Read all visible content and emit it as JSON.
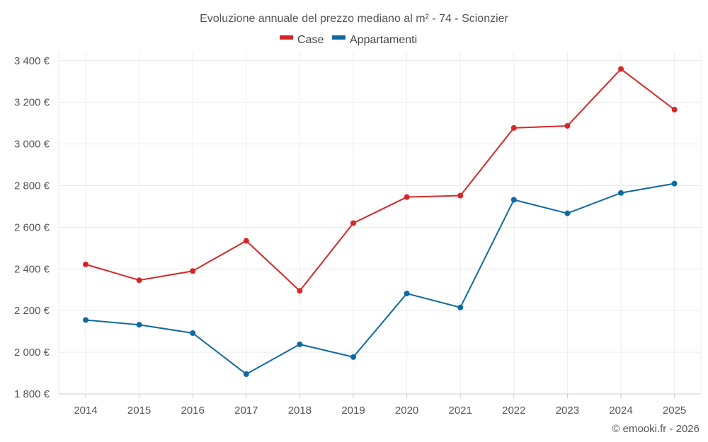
{
  "chart_data": {
    "type": "line",
    "title": "Evoluzione annuale del prezzo mediano al m² - 74 - Scionzier",
    "xlabel": "",
    "ylabel": "",
    "categories": [
      "2014",
      "2015",
      "2016",
      "2017",
      "2018",
      "2019",
      "2020",
      "2021",
      "2022",
      "2023",
      "2024",
      "2025"
    ],
    "ylim": [
      1800,
      3440
    ],
    "yticks": [
      1800,
      2000,
      2200,
      2400,
      2600,
      2800,
      3000,
      3200,
      3400
    ],
    "ytick_labels": [
      "1 800 €",
      "2 000 €",
      "2 200 €",
      "2 400 €",
      "2 600 €",
      "2 800 €",
      "3 000 €",
      "3 200 €",
      "3 400 €"
    ],
    "grid": true,
    "legend_position": "top-center",
    "series": [
      {
        "name": "Case",
        "color": "#d62728",
        "values": [
          2422,
          2346,
          2390,
          2535,
          2295,
          2620,
          2745,
          2752,
          3077,
          3087,
          3360,
          3165
        ]
      },
      {
        "name": "Appartamenti",
        "color": "#0f6aa1",
        "values": [
          2155,
          2132,
          2092,
          1895,
          2038,
          1977,
          2282,
          2215,
          2732,
          2667,
          2765,
          2810
        ]
      }
    ]
  },
  "credit": "© emooki.fr - 2026"
}
